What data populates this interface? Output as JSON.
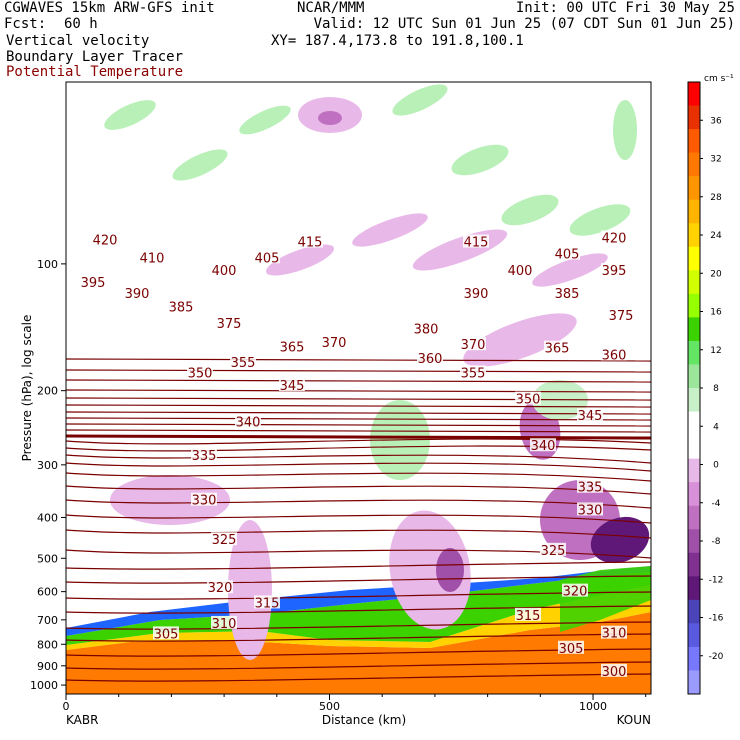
{
  "header": {
    "title_left": "CGWAVES 15km ARW-GFS init",
    "title_center": "NCAR/MMM",
    "init": "Init: 00 UTC Fri 30 May 25",
    "fcst_label": "Fcst:",
    "fcst_value": "60 h",
    "valid": "Valid: 12 UTC Sun 01 Jun 25 (07 CDT Sun 01 Jun 25)",
    "field1": "Vertical velocity",
    "field2": "Boundary Layer Tracer",
    "field3": "Potential Temperature",
    "xy": "XY= 187.4,173.8 to 191.8,100.1"
  },
  "chart_data": {
    "type": "cross-section",
    "xlabel": "Distance (km)",
    "ylabel": "Pressure (hPa), log scale",
    "xlim": [
      0,
      1110
    ],
    "ylim": [
      1050,
      37
    ],
    "x_ticks": [
      0,
      500,
      1000
    ],
    "y_ticks": [
      100,
      200,
      300,
      400,
      500,
      600,
      700,
      800,
      900,
      1000
    ],
    "x_endpoints": [
      "KABR",
      "KOUN"
    ],
    "colorbar": {
      "units": "cm s⁻¹",
      "ticks": [
        36,
        32,
        28,
        24,
        20,
        16,
        12,
        8,
        4,
        0,
        -4,
        -8,
        -12,
        -16,
        -20
      ],
      "colors": [
        "#ff0000",
        "#e83000",
        "#ff5a00",
        "#ff7800",
        "#ff9600",
        "#ffb400",
        "#ffd200",
        "#ffff00",
        "#d2ff00",
        "#96ff00",
        "#3cd200",
        "#64e664",
        "#9ce69c",
        "#c8f0c8",
        "#ffffff",
        "#ffffff",
        "#e8b8e8",
        "#d890d8",
        "#c070c0",
        "#a050a8",
        "#803090",
        "#601878",
        "#4a44b8",
        "#5a5ae0",
        "#7878ff",
        "#9a9aff"
      ]
    },
    "theta_labels": [
      {
        "v": "420",
        "x": 105,
        "p": 88
      },
      {
        "v": "410",
        "x": 152,
        "p": 97
      },
      {
        "v": "395",
        "x": 93,
        "p": 111
      },
      {
        "v": "390",
        "x": 137,
        "p": 118
      },
      {
        "v": "385",
        "x": 181,
        "p": 127
      },
      {
        "v": "400",
        "x": 224,
        "p": 104
      },
      {
        "v": "405",
        "x": 267,
        "p": 97
      },
      {
        "v": "415",
        "x": 310,
        "p": 89
      },
      {
        "v": "375",
        "x": 229,
        "p": 139
      },
      {
        "v": "365",
        "x": 292,
        "p": 158
      },
      {
        "v": "370",
        "x": 334,
        "p": 154
      },
      {
        "v": "355",
        "x": 243,
        "p": 172
      },
      {
        "v": "350",
        "x": 200,
        "p": 182
      },
      {
        "v": "345",
        "x": 292,
        "p": 195
      },
      {
        "v": "340",
        "x": 248,
        "p": 238
      },
      {
        "v": "335",
        "x": 204,
        "p": 286
      },
      {
        "v": "330",
        "x": 204,
        "p": 365
      },
      {
        "v": "325",
        "x": 224,
        "p": 453
      },
      {
        "v": "320",
        "x": 220,
        "p": 589
      },
      {
        "v": "315",
        "x": 267,
        "p": 640
      },
      {
        "v": "310",
        "x": 224,
        "p": 716
      },
      {
        "v": "305",
        "x": 166,
        "p": 758
      },
      {
        "v": "415",
        "x": 476,
        "p": 89
      },
      {
        "v": "400",
        "x": 520,
        "p": 104
      },
      {
        "v": "390",
        "x": 476,
        "p": 118
      },
      {
        "v": "380",
        "x": 426,
        "p": 143
      },
      {
        "v": "360",
        "x": 430,
        "p": 168
      },
      {
        "v": "370",
        "x": 473,
        "p": 156
      },
      {
        "v": "355",
        "x": 473,
        "p": 182
      },
      {
        "v": "350",
        "x": 528,
        "p": 210
      },
      {
        "v": "340",
        "x": 543,
        "p": 271
      },
      {
        "v": "365",
        "x": 557,
        "p": 159
      },
      {
        "v": "420",
        "x": 614,
        "p": 87
      },
      {
        "v": "405",
        "x": 567,
        "p": 95
      },
      {
        "v": "395",
        "x": 614,
        "p": 104
      },
      {
        "v": "385",
        "x": 567,
        "p": 118
      },
      {
        "v": "375",
        "x": 621,
        "p": 133
      },
      {
        "v": "360",
        "x": 614,
        "p": 165
      },
      {
        "v": "345",
        "x": 590,
        "p": 230
      },
      {
        "v": "335",
        "x": 590,
        "p": 340
      },
      {
        "v": "330",
        "x": 590,
        "p": 385
      },
      {
        "v": "325",
        "x": 553,
        "p": 480
      },
      {
        "v": "320",
        "x": 575,
        "p": 600
      },
      {
        "v": "315",
        "x": 528,
        "p": 685
      },
      {
        "v": "310",
        "x": 614,
        "p": 755
      },
      {
        "v": "305",
        "x": 571,
        "p": 820
      },
      {
        "v": "300",
        "x": 614,
        "p": 930
      }
    ]
  }
}
